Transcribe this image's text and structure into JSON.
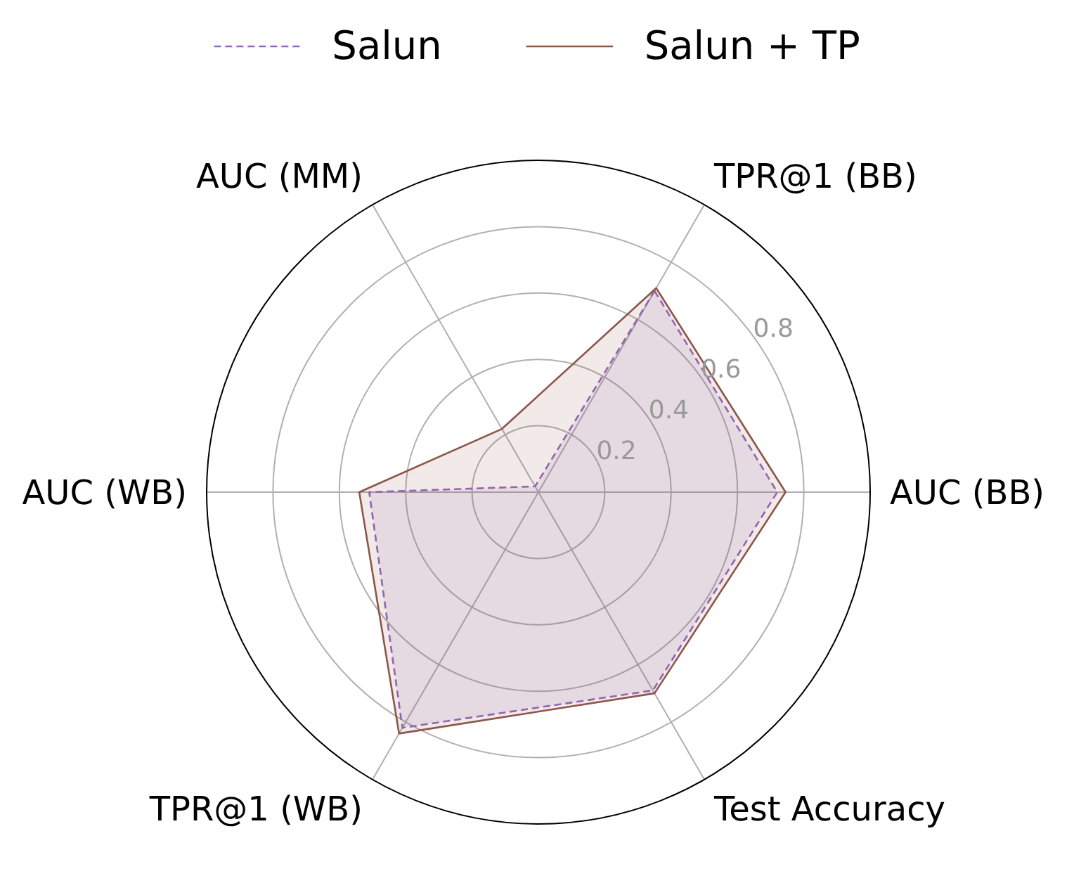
{
  "chart_data": {
    "type": "radar",
    "categories": [
      "TPR@1 (BB)",
      "AUC (BB)",
      "Test Accuracy",
      "TPR@1 (WB)",
      "AUC (WB)",
      "AUC (MM)"
    ],
    "series": [
      {
        "name": "Salun",
        "color": "#9467bd",
        "line_style": "dashed",
        "values": [
          0.7,
          0.72,
          0.69,
          0.82,
          0.51,
          0.02
        ]
      },
      {
        "name": "Salun + TP",
        "color": "#8c564b",
        "line_style": "solid",
        "values": [
          0.71,
          0.745,
          0.7,
          0.84,
          0.54,
          0.22
        ]
      }
    ],
    "ylim": [
      0,
      1
    ],
    "yticks": [
      0.2,
      0.4,
      0.6,
      0.8
    ],
    "grid": true,
    "legend": "top"
  }
}
